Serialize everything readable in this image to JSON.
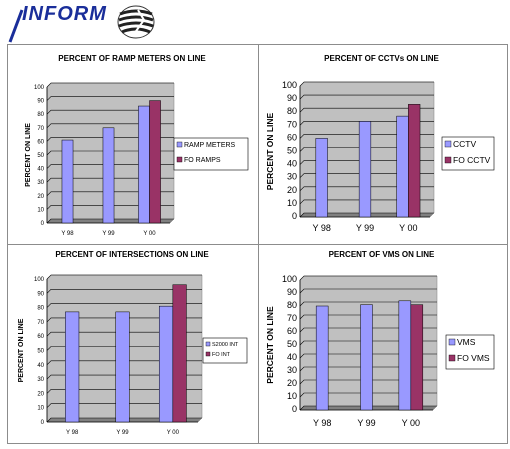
{
  "header": {
    "logo_text": "INFORM",
    "colors": {
      "brand": "#1a2e9a"
    }
  },
  "colors": {
    "series1": "#9999ff",
    "series2": "#993366",
    "plot_bg": "#c0c0c0"
  },
  "chart_data": [
    {
      "type": "bar",
      "title": "PERCENT OF RAMP METERS ON LINE",
      "ylabel": "PERCENT ON LINE",
      "xlabel": "",
      "categories": [
        "Y 98",
        "Y 99",
        "Y 00"
      ],
      "ylim": [
        0,
        100
      ],
      "yticks": [
        "0",
        "10",
        "20",
        "30",
        "40",
        "50",
        "60",
        "70",
        "80",
        "90",
        "100"
      ],
      "grid": true,
      "legend": "right",
      "series": [
        {
          "name": "RAMP METERS",
          "values": [
            61,
            70,
            86
          ]
        },
        {
          "name": "FO RAMPS",
          "values": [
            null,
            null,
            90
          ]
        }
      ]
    },
    {
      "type": "bar",
      "title": "PERCENT OF CCTVs ON LINE",
      "ylabel": "PERCENT ON LINE",
      "xlabel": "",
      "categories": [
        "Y 98",
        "Y 99",
        "Y 00"
      ],
      "ylim": [
        0,
        100
      ],
      "yticks": [
        "0",
        "10",
        "20",
        "30",
        "40",
        "50",
        "60",
        "70",
        "80",
        "90",
        "100"
      ],
      "grid": true,
      "legend": "right",
      "series": [
        {
          "name": "CCTV",
          "values": [
            60,
            73,
            77
          ]
        },
        {
          "name": "FO CCTV",
          "values": [
            null,
            null,
            86
          ]
        }
      ]
    },
    {
      "type": "bar",
      "title": "PERCENT OF INTERSECTIONS ON LINE",
      "ylabel": "PERCENT ON LINE",
      "xlabel": "",
      "categories": [
        "Y 98",
        "Y 99",
        "Y 00"
      ],
      "ylim": [
        0,
        100
      ],
      "yticks": [
        "0",
        "10",
        "20",
        "30",
        "40",
        "50",
        "60",
        "70",
        "80",
        "90",
        "100"
      ],
      "grid": true,
      "legend": "right",
      "series": [
        {
          "name": "S2000 INT",
          "values": [
            77,
            77,
            81
          ]
        },
        {
          "name": "FO INT",
          "values": [
            null,
            null,
            96
          ]
        }
      ]
    },
    {
      "type": "bar",
      "title": "PERCENT OF VMS ON LINE",
      "ylabel": "PERCENT ON LINE",
      "xlabel": "",
      "categories": [
        "Y 98",
        "Y 99",
        "Y 00"
      ],
      "ylim": [
        0,
        100
      ],
      "yticks": [
        "0",
        "10",
        "20",
        "30",
        "40",
        "50",
        "60",
        "70",
        "80",
        "90",
        "100"
      ],
      "grid": true,
      "legend": "right",
      "series": [
        {
          "name": "VMS",
          "values": [
            80,
            81,
            84
          ]
        },
        {
          "name": "FO VMS",
          "values": [
            null,
            null,
            81
          ]
        }
      ]
    }
  ]
}
